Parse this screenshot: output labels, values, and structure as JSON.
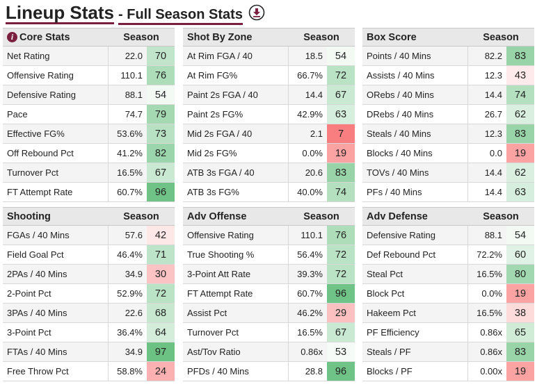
{
  "header": {
    "title": "Lineup Stats",
    "subtitle": "- Full Season Stats",
    "download_icon": "download-icon"
  },
  "colors": {
    "accent": "#7a1f3d",
    "high": "#63be7b",
    "low": "#f8696b",
    "mid": "#ffffff"
  },
  "panels": [
    {
      "title": "Core Stats",
      "has_info": true,
      "season": "Season",
      "rows": [
        {
          "label": "Net Rating",
          "value": "22.0",
          "pct": "70"
        },
        {
          "label": "Offensive Rating",
          "value": "110.1",
          "pct": "76"
        },
        {
          "label": "Defensive Rating",
          "value": "88.1",
          "pct": "54"
        },
        {
          "label": "Pace",
          "value": "74.7",
          "pct": "79"
        },
        {
          "label": "Effective FG%",
          "value": "53.6%",
          "pct": "73"
        },
        {
          "label": "Off Rebound Pct",
          "value": "41.2%",
          "pct": "82"
        },
        {
          "label": "Turnover Pct",
          "value": "16.5%",
          "pct": "67"
        },
        {
          "label": "FT Attempt Rate",
          "value": "60.7%",
          "pct": "96"
        }
      ]
    },
    {
      "title": "Shot By Zone",
      "has_info": false,
      "season": "Season",
      "rows": [
        {
          "label": "At Rim FGA / 40",
          "value": "18.5",
          "pct": "54"
        },
        {
          "label": "At Rim FG%",
          "value": "66.7%",
          "pct": "72"
        },
        {
          "label": "Paint 2s FGA / 40",
          "value": "14.4",
          "pct": "67"
        },
        {
          "label": "Paint 2s FG%",
          "value": "42.9%",
          "pct": "63"
        },
        {
          "label": "Mid 2s FGA / 40",
          "value": "2.1",
          "pct": "7"
        },
        {
          "label": "Mid 2s FG%",
          "value": "0.0%",
          "pct": "19"
        },
        {
          "label": "ATB 3s FGA / 40",
          "value": "20.6",
          "pct": "83"
        },
        {
          "label": "ATB 3s FG%",
          "value": "40.0%",
          "pct": "74"
        }
      ]
    },
    {
      "title": "Box Score",
      "has_info": false,
      "season": "Season",
      "rows": [
        {
          "label": "Points / 40 Mins",
          "value": "82.2",
          "pct": "83"
        },
        {
          "label": "Assists / 40 Mins",
          "value": "12.3",
          "pct": "43"
        },
        {
          "label": "ORebs / 40 Mins",
          "value": "14.4",
          "pct": "74"
        },
        {
          "label": "DRebs / 40 Mins",
          "value": "26.7",
          "pct": "62"
        },
        {
          "label": "Steals / 40 Mins",
          "value": "12.3",
          "pct": "83"
        },
        {
          "label": "Blocks / 40 Mins",
          "value": "0.0",
          "pct": "19"
        },
        {
          "label": "TOVs / 40 Mins",
          "value": "14.4",
          "pct": "62"
        },
        {
          "label": "PFs / 40 Mins",
          "value": "14.4",
          "pct": "63"
        }
      ]
    },
    {
      "title": "Shooting",
      "has_info": false,
      "season": "Season",
      "rows": [
        {
          "label": "FGAs / 40 Mins",
          "value": "57.6",
          "pct": "42"
        },
        {
          "label": "Field Goal Pct",
          "value": "46.4%",
          "pct": "71"
        },
        {
          "label": "2PAs / 40 Mins",
          "value": "34.9",
          "pct": "30"
        },
        {
          "label": "2-Point Pct",
          "value": "52.9%",
          "pct": "72"
        },
        {
          "label": "3PAs / 40 Mins",
          "value": "22.6",
          "pct": "68"
        },
        {
          "label": "3-Point Pct",
          "value": "36.4%",
          "pct": "64"
        },
        {
          "label": "FTAs / 40 Mins",
          "value": "34.9",
          "pct": "97"
        },
        {
          "label": "Free Throw Pct",
          "value": "58.8%",
          "pct": "24"
        }
      ]
    },
    {
      "title": "Adv Offense",
      "has_info": false,
      "season": "Season",
      "rows": [
        {
          "label": "Offensive Rating",
          "value": "110.1",
          "pct": "76"
        },
        {
          "label": "True Shooting %",
          "value": "56.4%",
          "pct": "72"
        },
        {
          "label": "3-Point Att Rate",
          "value": "39.3%",
          "pct": "72"
        },
        {
          "label": "FT Attempt Rate",
          "value": "60.7%",
          "pct": "96"
        },
        {
          "label": "Assist Pct",
          "value": "46.2%",
          "pct": "29"
        },
        {
          "label": "Turnover Pct",
          "value": "16.5%",
          "pct": "67"
        },
        {
          "label": "Ast/Tov Ratio",
          "value": "0.86x",
          "pct": "53"
        },
        {
          "label": "PFDs / 40 Mins",
          "value": "28.8",
          "pct": "96"
        }
      ]
    },
    {
      "title": "Adv Defense",
      "has_info": false,
      "season": "Season",
      "rows": [
        {
          "label": "Defensive Rating",
          "value": "88.1",
          "pct": "54"
        },
        {
          "label": "Def Rebound Pct",
          "value": "72.2%",
          "pct": "60"
        },
        {
          "label": "Steal Pct",
          "value": "16.5%",
          "pct": "80"
        },
        {
          "label": "Block Pct",
          "value": "0.0%",
          "pct": "19"
        },
        {
          "label": "Hakeem Pct",
          "value": "16.5%",
          "pct": "38"
        },
        {
          "label": "PF Efficiency",
          "value": "0.86x",
          "pct": "65"
        },
        {
          "label": "Steals / PF",
          "value": "0.86x",
          "pct": "83"
        },
        {
          "label": "Blocks / PF",
          "value": "0.00x",
          "pct": "19"
        }
      ]
    }
  ]
}
